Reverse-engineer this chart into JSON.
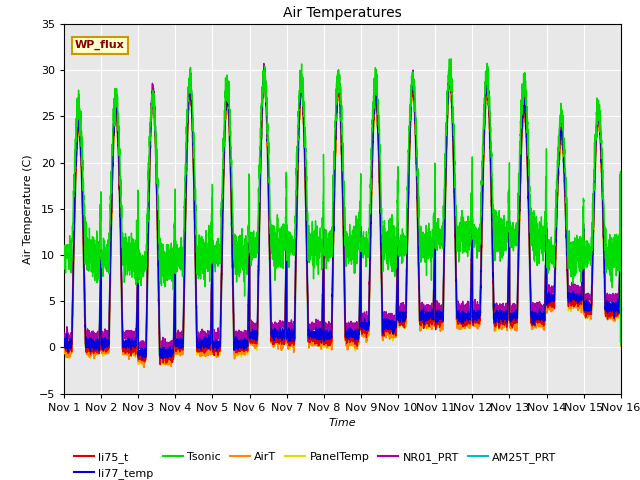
{
  "title": "Air Temperatures",
  "xlabel": "Time",
  "ylabel": "Air Temperature (C)",
  "ylim": [
    -5,
    35
  ],
  "xlim": [
    0,
    15
  ],
  "x_tick_labels": [
    "Nov 1",
    "Nov 2",
    "Nov 3",
    "Nov 4",
    "Nov 5",
    "Nov 6",
    "Nov 7",
    "Nov 8",
    "Nov 9",
    "Nov 10",
    "Nov 11",
    "Nov 12",
    "Nov 13",
    "Nov 14",
    "Nov 15",
    "Nov 16"
  ],
  "series": {
    "li75_t": {
      "color": "#dd0000",
      "lw": 1.0
    },
    "li77_temp": {
      "color": "#0000dd",
      "lw": 1.0
    },
    "Tsonic": {
      "color": "#00dd00",
      "lw": 1.0
    },
    "AirT": {
      "color": "#ff8800",
      "lw": 1.2
    },
    "PanelTemp": {
      "color": "#dddd00",
      "lw": 1.0
    },
    "NR01_PRT": {
      "color": "#aa00aa",
      "lw": 1.0
    },
    "AM25T_PRT": {
      "color": "#00bbcc",
      "lw": 1.5
    }
  },
  "day_mins": [
    0,
    0,
    -1,
    0,
    0,
    1,
    1,
    1,
    2,
    3,
    3,
    3,
    3,
    5,
    4
  ],
  "day_maxs": [
    24,
    26,
    27,
    28,
    27,
    29,
    28,
    28,
    27,
    28,
    29,
    28,
    26,
    23,
    25
  ],
  "tsonic_day_mins": [
    10,
    10,
    9,
    10,
    10,
    11,
    11,
    11,
    11,
    11,
    12,
    12,
    12,
    10,
    10
  ],
  "tsonic_day_maxs": [
    26,
    27,
    27,
    29,
    28,
    29,
    29,
    29,
    29,
    29,
    30,
    29,
    29,
    25,
    26
  ],
  "annotation_text": "WP_flux",
  "background_color": "#e8e8e8",
  "grid_color": "#ffffff",
  "num_days": 15,
  "points_per_day": 288,
  "legend_order": [
    "li75_t",
    "li77_temp",
    "Tsonic",
    "AirT",
    "PanelTemp",
    "NR01_PRT",
    "AM25T_PRT"
  ]
}
